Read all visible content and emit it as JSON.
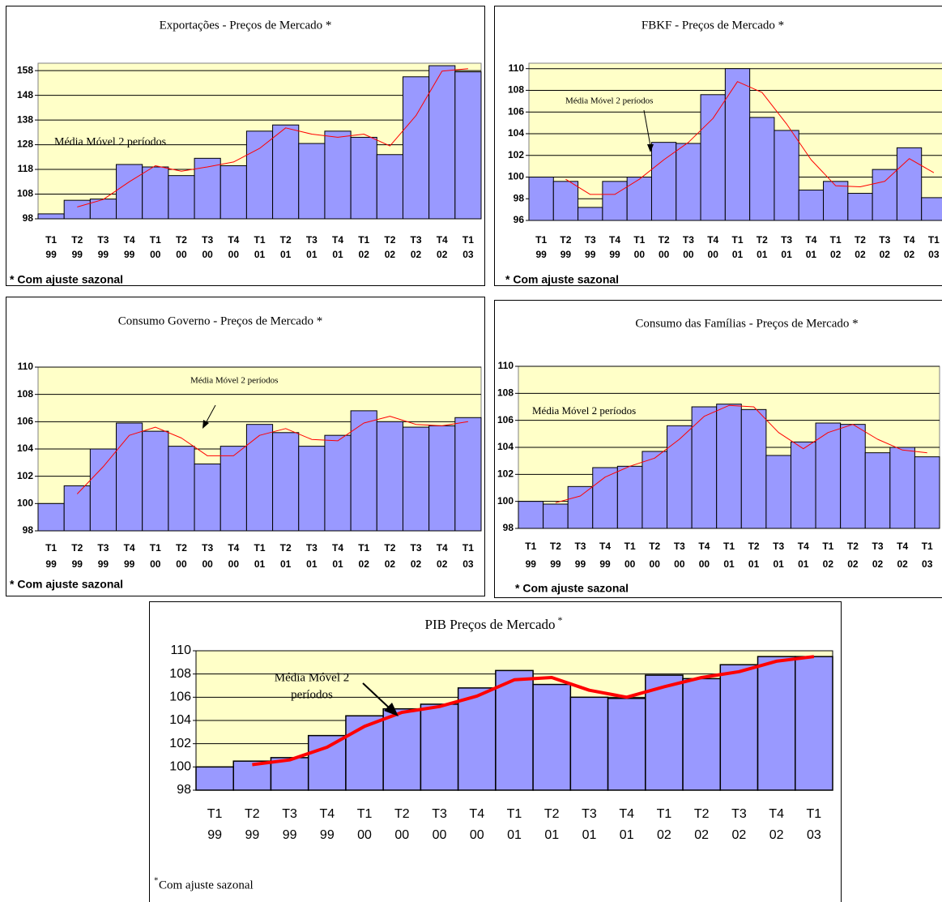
{
  "chart_data": [
    {
      "type": "bar",
      "title": "Exportações - Preços de Mercado *",
      "categories": [
        [
          "T1",
          "99"
        ],
        [
          "T2",
          "99"
        ],
        [
          "T3",
          "99"
        ],
        [
          "T4",
          "99"
        ],
        [
          "T1",
          "00"
        ],
        [
          "T2",
          "00"
        ],
        [
          "T3",
          "00"
        ],
        [
          "T4",
          "00"
        ],
        [
          "T1",
          "01"
        ],
        [
          "T2",
          "01"
        ],
        [
          "T3",
          "01"
        ],
        [
          "T4",
          "01"
        ],
        [
          "T1",
          "02"
        ],
        [
          "T2",
          "02"
        ],
        [
          "T3",
          "02"
        ],
        [
          "T4",
          "02"
        ],
        [
          "T1",
          "03"
        ]
      ],
      "series": [
        {
          "type": "bar",
          "color": "#9999ff",
          "values": [
            100,
            105.5,
            106,
            120,
            119,
            115.5,
            122.5,
            119.5,
            133.5,
            136,
            128.5,
            133.5,
            131,
            124,
            155.5,
            160,
            157.5
          ]
        },
        {
          "type": "line",
          "color": "#ff0000",
          "values": [
            null,
            102.8,
            105.8,
            113,
            119.5,
            117.3,
            119,
            121,
            126.5,
            134.8,
            132.3,
            131,
            132.3,
            127.5,
            139.8,
            157.8,
            158.8
          ]
        }
      ],
      "annotation": "Média Móvel 2 períodos",
      "footnote": "* Com ajuste sazonal",
      "ylim": [
        98,
        161
      ],
      "yticks": [
        98,
        108,
        118,
        128,
        138,
        148,
        158
      ],
      "grid": true
    },
    {
      "type": "bar",
      "title": "FBKF - Preços de Mercado *",
      "categories": [
        [
          "T1",
          "99"
        ],
        [
          "T2",
          "99"
        ],
        [
          "T3",
          "99"
        ],
        [
          "T4",
          "99"
        ],
        [
          "T1",
          "00"
        ],
        [
          "T2",
          "00"
        ],
        [
          "T3",
          "00"
        ],
        [
          "T4",
          "00"
        ],
        [
          "T1",
          "01"
        ],
        [
          "T2",
          "01"
        ],
        [
          "T3",
          "01"
        ],
        [
          "T4",
          "01"
        ],
        [
          "T1",
          "02"
        ],
        [
          "T2",
          "02"
        ],
        [
          "T3",
          "02"
        ],
        [
          "T4",
          "02"
        ],
        [
          "T1",
          "03"
        ]
      ],
      "series": [
        {
          "type": "bar",
          "color": "#9999ff",
          "values": [
            100,
            99.6,
            97.2,
            99.6,
            100,
            103.2,
            103.1,
            107.6,
            110,
            105.5,
            104.3,
            98.8,
            99.6,
            98.5,
            100.7,
            102.7,
            98.1
          ]
        },
        {
          "type": "line",
          "color": "#ff0000",
          "values": [
            null,
            99.8,
            98.4,
            98.4,
            99.8,
            101.6,
            103.2,
            105.4,
            108.8,
            107.8,
            104.9,
            101.6,
            99.2,
            99.1,
            99.6,
            101.7,
            100.4
          ]
        }
      ],
      "annotation": "Média Móvel 2 períodos",
      "footnote": "* Com ajuste sazonal",
      "ylim": [
        96,
        110.5
      ],
      "yticks": [
        96,
        98,
        100,
        102,
        104,
        106,
        108,
        110
      ],
      "grid": true
    },
    {
      "type": "bar",
      "title": "Consumo Governo - Preços de Mercado *",
      "categories": [
        [
          "T1",
          "99"
        ],
        [
          "T2",
          "99"
        ],
        [
          "T3",
          "99"
        ],
        [
          "T4",
          "99"
        ],
        [
          "T1",
          "00"
        ],
        [
          "T2",
          "00"
        ],
        [
          "T3",
          "00"
        ],
        [
          "T4",
          "00"
        ],
        [
          "T1",
          "01"
        ],
        [
          "T2",
          "01"
        ],
        [
          "T3",
          "01"
        ],
        [
          "T4",
          "01"
        ],
        [
          "T1",
          "02"
        ],
        [
          "T2",
          "02"
        ],
        [
          "T3",
          "02"
        ],
        [
          "T4",
          "02"
        ],
        [
          "T1",
          "03"
        ]
      ],
      "series": [
        {
          "type": "bar",
          "color": "#9999ff",
          "values": [
            100,
            101.3,
            104,
            105.9,
            105.3,
            104.2,
            102.9,
            104.2,
            105.8,
            105.2,
            104.2,
            105,
            106.8,
            106,
            105.6,
            105.7,
            106.3
          ]
        },
        {
          "type": "line",
          "color": "#ff0000",
          "values": [
            null,
            100.7,
            102.7,
            105,
            105.6,
            104.8,
            103.5,
            103.5,
            105,
            105.5,
            104.7,
            104.6,
            105.9,
            106.4,
            105.8,
            105.7,
            106
          ]
        }
      ],
      "annotation": "Média Móvel 2 períodos",
      "footnote": "* Com ajuste sazonal",
      "ylim": [
        98,
        110
      ],
      "yticks": [
        98,
        100,
        102,
        104,
        106,
        108,
        110
      ],
      "grid": true
    },
    {
      "type": "bar",
      "title": "Consumo das Famílias - Preços de Mercado *",
      "categories": [
        [
          "T1",
          "99"
        ],
        [
          "T2",
          "99"
        ],
        [
          "T3",
          "99"
        ],
        [
          "T4",
          "99"
        ],
        [
          "T1",
          "00"
        ],
        [
          "T2",
          "00"
        ],
        [
          "T3",
          "00"
        ],
        [
          "T4",
          "00"
        ],
        [
          "T1",
          "01"
        ],
        [
          "T2",
          "01"
        ],
        [
          "T3",
          "01"
        ],
        [
          "T4",
          "01"
        ],
        [
          "T1",
          "02"
        ],
        [
          "T2",
          "02"
        ],
        [
          "T3",
          "02"
        ],
        [
          "T4",
          "02"
        ],
        [
          "T1",
          "03"
        ]
      ],
      "series": [
        {
          "type": "bar",
          "color": "#9999ff",
          "values": [
            100,
            99.8,
            101.1,
            102.5,
            102.6,
            103.7,
            105.6,
            107,
            107.2,
            106.8,
            103.4,
            104.4,
            105.8,
            105.7,
            103.6,
            104,
            103.3
          ]
        },
        {
          "type": "line",
          "color": "#ff0000",
          "values": [
            null,
            99.9,
            100.4,
            101.8,
            102.6,
            103.2,
            104.6,
            106.3,
            107.1,
            107,
            105.1,
            103.9,
            105.1,
            105.7,
            104.6,
            103.8,
            103.6
          ]
        }
      ],
      "annotation": "Média Móvel 2 períodos",
      "footnote": "* Com ajuste sazonal",
      "ylim": [
        98,
        110
      ],
      "yticks": [
        98,
        100,
        102,
        104,
        106,
        108,
        110
      ],
      "grid": true
    },
    {
      "type": "bar",
      "title": "PIB Preços de Mercado",
      "title_mark": "*",
      "categories": [
        [
          "T1",
          "99"
        ],
        [
          "T2",
          "99"
        ],
        [
          "T3",
          "99"
        ],
        [
          "T4",
          "99"
        ],
        [
          "T1",
          "00"
        ],
        [
          "T2",
          "00"
        ],
        [
          "T3",
          "00"
        ],
        [
          "T4",
          "00"
        ],
        [
          "T1",
          "01"
        ],
        [
          "T2",
          "01"
        ],
        [
          "T3",
          "01"
        ],
        [
          "T4",
          "01"
        ],
        [
          "T1",
          "02"
        ],
        [
          "T2",
          "02"
        ],
        [
          "T3",
          "02"
        ],
        [
          "T4",
          "02"
        ],
        [
          "T1",
          "03"
        ]
      ],
      "series": [
        {
          "type": "bar",
          "color": "#9999ff",
          "values": [
            100,
            100.5,
            100.8,
            102.7,
            104.4,
            105,
            105.4,
            106.8,
            108.3,
            107.1,
            106,
            105.9,
            107.9,
            107.6,
            108.8,
            109.5,
            109.5
          ]
        },
        {
          "type": "line",
          "color": "#ff0000",
          "values": [
            null,
            100.2,
            100.6,
            101.7,
            103.5,
            104.7,
            105.2,
            106.1,
            107.5,
            107.7,
            106.6,
            106,
            106.9,
            107.7,
            108.2,
            109.1,
            109.5
          ]
        }
      ],
      "annotation": [
        "Média Móvel  2",
        "períodos"
      ],
      "footnote_mark": "*",
      "footnote": "Com ajuste sazonal",
      "ylim": [
        98,
        110
      ],
      "yticks": [
        98,
        100,
        102,
        104,
        106,
        108,
        110
      ],
      "grid": true
    }
  ]
}
